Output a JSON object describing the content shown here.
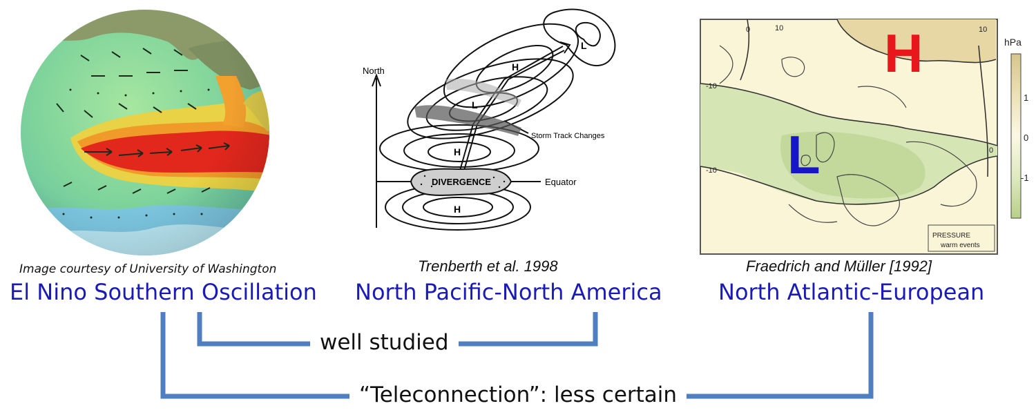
{
  "panels": [
    {
      "credit": "Image courtesy of University of  Washington",
      "title": "El Nino Southern Oscillation"
    },
    {
      "credit": "Trenberth et al. 1998",
      "title": "North Pacific-North America",
      "diagram": {
        "axis_label": "North",
        "labels": [
          "L",
          "H",
          "L",
          "H",
          "H"
        ],
        "divergence_label": "DIVERGENCE",
        "equator_label": "Equator",
        "storm_track_label": "Storm Track Changes"
      }
    },
    {
      "credit": "Fraedrich and Müller [1992]",
      "title": "North Atlantic-European",
      "map": {
        "high_label": "H",
        "low_label": "L",
        "high_color": "#e8171b",
        "low_color": "#1616c8",
        "contour_labels": [
          "10",
          "0",
          "-10",
          "-10",
          "0",
          "10"
        ],
        "legend_box": [
          "PRESSURE",
          "warm events"
        ],
        "colorbar": {
          "unit": "hPa",
          "ticks": [
            "1",
            "0",
            "-1"
          ]
        }
      }
    }
  ],
  "brackets": [
    {
      "label": "well studied",
      "connects": [
        "El Nino Southern Oscillation",
        "North Pacific-North America"
      ],
      "color": "#4f7fc0"
    },
    {
      "label": "“Teleconnection”: less certain",
      "connects": [
        "El Nino Southern Oscillation",
        "North Atlantic-European"
      ],
      "color": "#4f7fc0"
    }
  ]
}
